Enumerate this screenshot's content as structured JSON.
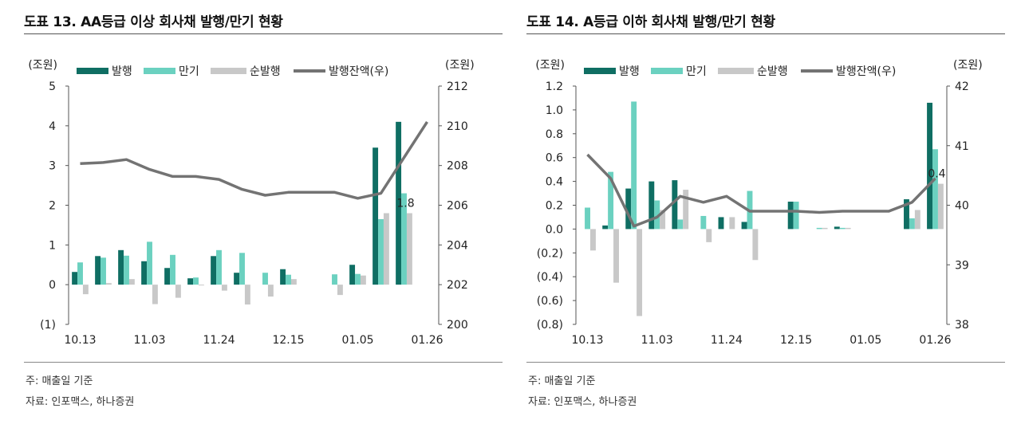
{
  "colors": {
    "issue": "#0f6e63",
    "maturity": "#6bd1c0",
    "net": "#c8c8c8",
    "balance": "#737373"
  },
  "panels": [
    {
      "title": "도표 13. AA등급 이상 회사채 발행/만기 현황",
      "unit_left": "(조원)",
      "unit_right": "(조원)",
      "note": "주: 매출일 기준",
      "source": "자료: 인포맥스, 하나증권"
    },
    {
      "title": "도표 14. A등급 이하 회사채 발행/만기 현황",
      "unit_left": "(조원)",
      "unit_right": "(조원)",
      "note": "주: 매출일 기준",
      "source": "자료: 인포맥스, 하나증권"
    }
  ],
  "chart_data": [
    {
      "type": "bar",
      "title": "도표 13. AA등급 이상 회사채 발행/만기 현황",
      "categories_labeled": [
        "10.13",
        "11.03",
        "11.24",
        "12.15",
        "01.05",
        "01.26"
      ],
      "n_periods": 16,
      "ylim_left": [
        -1,
        5
      ],
      "yticks_left": [
        "(1)",
        "0",
        "1",
        "2",
        "3",
        "4",
        "5"
      ],
      "ylim_right": [
        200,
        212
      ],
      "yticks_right": [
        "200",
        "202",
        "204",
        "206",
        "208",
        "210",
        "212"
      ],
      "legend": [
        "발행",
        "만기",
        "순발행",
        "발행잔액(우)"
      ],
      "series": [
        {
          "name": "발행",
          "type": "bar",
          "values": [
            0.32,
            0.72,
            0.87,
            0.59,
            0.42,
            0.16,
            0.72,
            0.3,
            0.0,
            0.39,
            0.0,
            0.0,
            0.5,
            3.45,
            4.1,
            0.0
          ]
        },
        {
          "name": "만기",
          "type": "bar",
          "values": [
            0.56,
            0.68,
            0.73,
            1.08,
            0.75,
            0.18,
            0.87,
            0.8,
            0.3,
            0.25,
            0.0,
            0.26,
            0.27,
            1.65,
            2.3,
            0.0
          ]
        },
        {
          "name": "순발행",
          "type": "bar",
          "values": [
            -0.24,
            0.04,
            0.14,
            -0.49,
            -0.33,
            -0.02,
            -0.15,
            -0.5,
            -0.3,
            0.14,
            0.0,
            -0.26,
            0.23,
            1.8,
            1.8,
            0.0
          ]
        },
        {
          "name": "발행잔액(우)",
          "type": "line",
          "axis": "right",
          "values": [
            208.1,
            208.15,
            208.3,
            207.8,
            207.45,
            207.45,
            207.3,
            206.8,
            206.5,
            206.65,
            206.65,
            206.65,
            206.35,
            206.6,
            208.4,
            210.2
          ]
        }
      ],
      "annotations": [
        {
          "text": "1.8",
          "series": "순발행",
          "index": 14
        }
      ],
      "grid": false,
      "legend_position": "top"
    },
    {
      "type": "bar",
      "title": "도표 14. A등급 이하 회사채 발행/만기 현황",
      "categories_labeled": [
        "10.13",
        "11.03",
        "11.24",
        "12.15",
        "01.05",
        "01.26"
      ],
      "n_periods": 16,
      "ylim_left": [
        -0.8,
        1.2
      ],
      "yticks_left": [
        "(0.8)",
        "(0.6)",
        "(0.4)",
        "(0.2)",
        "0.0",
        "0.2",
        "0.4",
        "0.6",
        "0.8",
        "1.0",
        "1.2"
      ],
      "ylim_right": [
        38,
        42
      ],
      "yticks_right": [
        "38",
        "39",
        "40",
        "41",
        "42"
      ],
      "legend": [
        "발행",
        "만기",
        "순발행",
        "발행잔액(우)"
      ],
      "series": [
        {
          "name": "발행",
          "type": "bar",
          "values": [
            0.0,
            0.03,
            0.34,
            0.4,
            0.41,
            0.0,
            0.1,
            0.06,
            0.0,
            0.23,
            0.0,
            0.02,
            0.0,
            0.0,
            0.25,
            1.06
          ]
        },
        {
          "name": "만기",
          "type": "bar",
          "values": [
            0.18,
            0.48,
            1.07,
            0.24,
            0.08,
            0.11,
            0.0,
            0.32,
            0.0,
            0.23,
            0.01,
            0.01,
            0.0,
            0.0,
            0.09,
            0.67
          ]
        },
        {
          "name": "순발행",
          "type": "bar",
          "values": [
            -0.18,
            -0.45,
            -0.73,
            0.16,
            0.33,
            -0.11,
            0.1,
            -0.26,
            0.0,
            0.0,
            0.01,
            0.01,
            0.0,
            0.0,
            0.16,
            0.38
          ]
        },
        {
          "name": "발행잔액(우)",
          "type": "line",
          "axis": "right",
          "values": [
            40.85,
            40.45,
            39.65,
            39.8,
            40.15,
            40.05,
            40.15,
            39.9,
            39.9,
            39.9,
            39.88,
            39.9,
            39.9,
            39.9,
            40.05,
            40.45
          ]
        }
      ],
      "annotations": [
        {
          "text": "0.4",
          "series": "순발행",
          "index": 15
        }
      ],
      "grid": false,
      "legend_position": "top"
    }
  ]
}
